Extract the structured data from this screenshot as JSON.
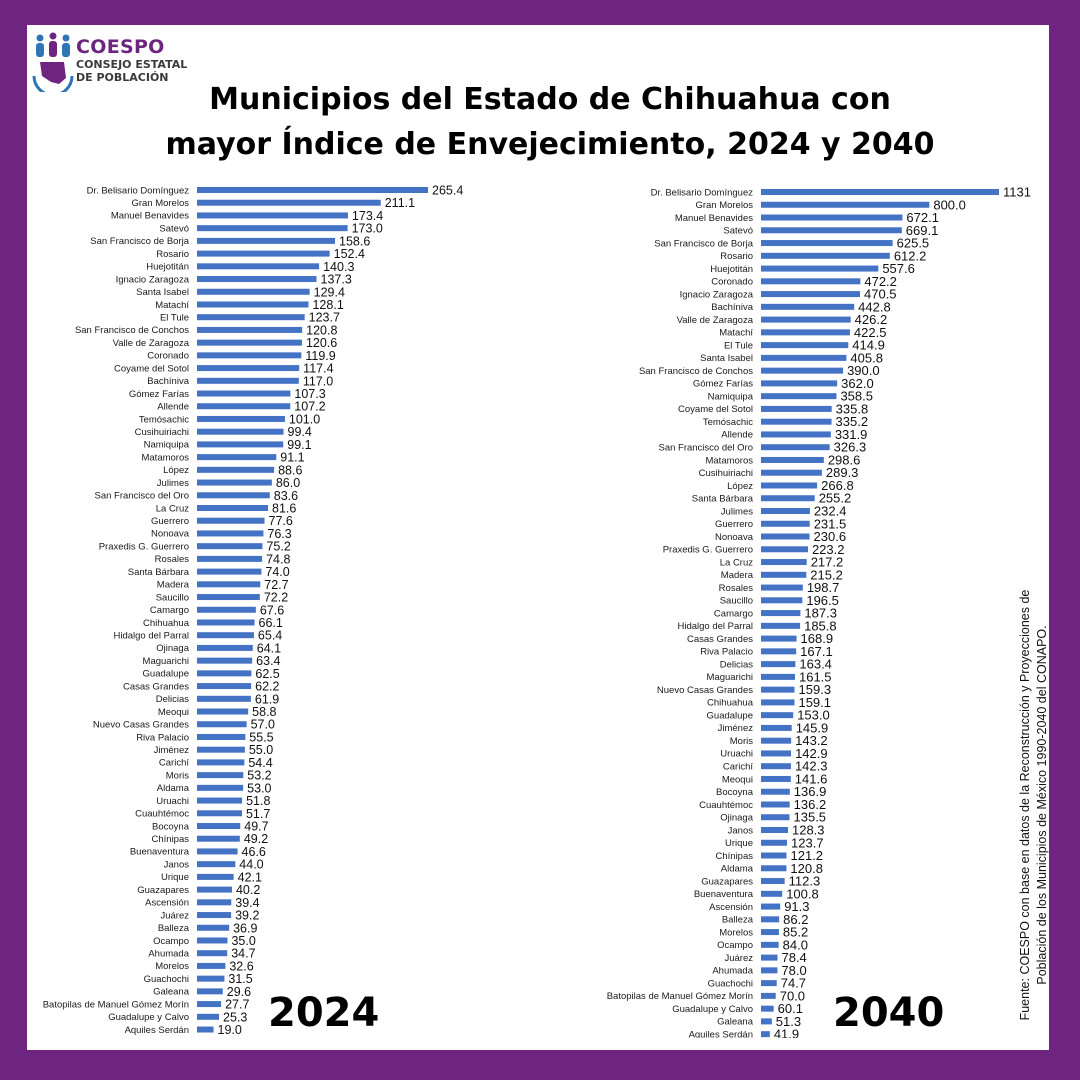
{
  "header": {
    "logo_name": "COESPO",
    "logo_sub_1": "CONSEJO ESTATAL",
    "logo_sub_2": "DE POBLACIÓN",
    "title_line_1": "Municipios del Estado de Chihuahua con",
    "title_line_2": "mayor Índice de Envejecimiento, 2024 y 2040"
  },
  "source_line_1": "Fuente: COESPO con base en datos de la Reconstrucción y Proyecciones de",
  "source_line_2": "Población de los Municipios de México 1990-2040 del CONAPO.",
  "colors": {
    "background": "#6E2580",
    "bar": "#4472C4",
    "logo_blue": "#2E75B6",
    "logo_purple": "#6E2580"
  },
  "chart_data": [
    {
      "type": "bar",
      "orientation": "horizontal",
      "year_label": "2024",
      "title": "",
      "xlabel": "",
      "ylabel": "",
      "xlim": [
        0,
        265.4
      ],
      "grid": false,
      "categories": [
        "Dr. Belisario Domínguez",
        "Gran Morelos",
        "Manuel Benavides",
        "Satevó",
        "San Francisco de Borja",
        "Rosario",
        "Huejotitán",
        "Ignacio Zaragoza",
        "Santa Isabel",
        "Matachí",
        "El Tule",
        "San Francisco de Conchos",
        "Valle de Zaragoza",
        "Coronado",
        "Coyame del Sotol",
        "Bachíniva",
        "Gómez Farías",
        "Allende",
        "Temósachic",
        "Cusihuiriachi",
        "Namiquipa",
        "Matamoros",
        "López",
        "Julimes",
        "San Francisco del Oro",
        "La Cruz",
        "Guerrero",
        "Nonoava",
        "Praxedis G. Guerrero",
        "Rosales",
        "Santa Bárbara",
        "Madera",
        "Saucillo",
        "Camargo",
        "Chihuahua",
        "Hidalgo del Parral",
        "Ojinaga",
        "Maguarichi",
        "Guadalupe",
        "Casas Grandes",
        "Delicias",
        "Meoqui",
        "Nuevo Casas Grandes",
        "Riva Palacio",
        "Jiménez",
        "Carichí",
        "Moris",
        "Aldama",
        "Uruachi",
        "Cuauhtémoc",
        "Bocoyna",
        "Chínipas",
        "Buenaventura",
        "Janos",
        "Urique",
        "Guazapares",
        "Ascensión",
        "Juárez",
        "Balleza",
        "Ocampo",
        "Ahumada",
        "Morelos",
        "Guachochi",
        "Galeana",
        "Batopilas de Manuel Gómez Morín",
        "Guadalupe y Calvo",
        "Aquiles Serdán"
      ],
      "values": [
        265.4,
        211.1,
        173.4,
        173.0,
        158.6,
        152.4,
        140.3,
        137.3,
        129.4,
        128.1,
        123.7,
        120.8,
        120.6,
        119.9,
        117.4,
        117.0,
        107.3,
        107.2,
        101.0,
        99.4,
        99.1,
        91.1,
        88.6,
        86.0,
        83.6,
        81.6,
        77.6,
        76.3,
        75.2,
        74.8,
        74.0,
        72.7,
        72.2,
        67.6,
        66.1,
        65.4,
        64.1,
        63.4,
        62.5,
        62.2,
        61.9,
        58.8,
        57.0,
        55.5,
        55.0,
        54.4,
        53.2,
        53.0,
        51.8,
        51.7,
        49.7,
        49.2,
        46.6,
        44.0,
        42.1,
        40.2,
        39.4,
        39.2,
        36.9,
        35.0,
        34.7,
        32.6,
        31.5,
        29.6,
        27.7,
        25.3,
        19.0
      ],
      "value_labels": [
        "265.4",
        "211.1",
        "173.4",
        "173.0",
        "158.6",
        "152.4",
        "140.3",
        "137.3",
        "129.4",
        "128.1",
        "123.7",
        "120.8",
        "120.6",
        "119.9",
        "117.4",
        "117.0",
        "107.3",
        "107.2",
        "101.0",
        "99.4",
        "99.1",
        "91.1",
        "88.6",
        "86.0",
        "83.6",
        "81.6",
        "77.6",
        "76.3",
        "75.2",
        "74.8",
        "74.0",
        "72.7",
        "72.2",
        "67.6",
        "66.1",
        "65.4",
        "64.1",
        "63.4",
        "62.5",
        "62.2",
        "61.9",
        "58.8",
        "57.0",
        "55.5",
        "55.0",
        "54.4",
        "53.2",
        "53.0",
        "51.8",
        "51.7",
        "49.7",
        "49.2",
        "46.6",
        "44.0",
        "42.1",
        "40.2",
        "39.4",
        "39.2",
        "36.9",
        "35.0",
        "34.7",
        "32.6",
        "31.5",
        "29.6",
        "27.7",
        "25.3",
        "19.0"
      ]
    },
    {
      "type": "bar",
      "orientation": "horizontal",
      "year_label": "2040",
      "title": "",
      "xlabel": "",
      "ylabel": "",
      "xlim": [
        0,
        1131
      ],
      "grid": false,
      "categories": [
        "Dr. Belisario Domínguez",
        "Gran Morelos",
        "Manuel Benavides",
        "Satevó",
        "San Francisco de Borja",
        "Rosario",
        "Huejotitán",
        "Coronado",
        "Ignacio Zaragoza",
        "Bachíniva",
        "Valle de Zaragoza",
        "Matachí",
        "El Tule",
        "Santa Isabel",
        "San Francisco de Conchos",
        "Gómez Farías",
        "Namiquipa",
        "Coyame del Sotol",
        "Temósachic",
        "Allende",
        "San Francisco del Oro",
        "Matamoros",
        "Cusihuiriachi",
        "López",
        "Santa Bárbara",
        "Julimes",
        "Guerrero",
        "Nonoava",
        "Praxedis G. Guerrero",
        "La Cruz",
        "Madera",
        "Rosales",
        "Saucillo",
        "Camargo",
        "Hidalgo del Parral",
        "Casas Grandes",
        "Riva Palacio",
        "Delicias",
        "Maguarichi",
        "Nuevo Casas Grandes",
        "Chihuahua",
        "Guadalupe",
        "Jiménez",
        "Moris",
        "Uruachi",
        "Carichí",
        "Meoqui",
        "Bocoyna",
        "Cuauhtémoc",
        "Ojinaga",
        "Janos",
        "Urique",
        "Chínipas",
        "Aldama",
        "Guazapares",
        "Buenaventura",
        "Ascensión",
        "Balleza",
        "Morelos",
        "Ocampo",
        "Juárez",
        "Ahumada",
        "Guachochi",
        "Batopilas de Manuel Gómez Morín",
        "Guadalupe y Calvo",
        "Galeana",
        "Aquiles Serdán"
      ],
      "values": [
        1131,
        800.0,
        672.1,
        669.1,
        625.5,
        612.2,
        557.6,
        472.2,
        470.5,
        442.8,
        426.2,
        422.5,
        414.9,
        405.8,
        390.0,
        362.0,
        358.5,
        335.8,
        335.2,
        331.9,
        326.3,
        298.6,
        289.3,
        266.8,
        255.2,
        232.4,
        231.5,
        230.6,
        223.2,
        217.2,
        215.2,
        198.7,
        196.5,
        187.3,
        185.8,
        168.9,
        167.1,
        163.4,
        161.5,
        159.3,
        159.1,
        153.0,
        145.9,
        143.2,
        142.9,
        142.3,
        141.6,
        136.9,
        136.2,
        135.5,
        128.3,
        123.7,
        121.2,
        120.8,
        112.3,
        100.8,
        91.3,
        86.2,
        85.2,
        84.0,
        78.4,
        78.0,
        74.7,
        70.0,
        60.1,
        51.3,
        41.9
      ],
      "value_labels": [
        "1131",
        "800.0",
        "672.1",
        "669.1",
        "625.5",
        "612.2",
        "557.6",
        "472.2",
        "470.5",
        "442.8",
        "426.2",
        "422.5",
        "414.9",
        "405.8",
        "390.0",
        "362.0",
        "358.5",
        "335.8",
        "335.2",
        "331.9",
        "326.3",
        "298.6",
        "289.3",
        "266.8",
        "255.2",
        "232.4",
        "231.5",
        "230.6",
        "223.2",
        "217.2",
        "215.2",
        "198.7",
        "196.5",
        "187.3",
        "185.8",
        "168.9",
        "167.1",
        "163.4",
        "161.5",
        "159.3",
        "159.1",
        "153.0",
        "145.9",
        "143.2",
        "142.9",
        "142.3",
        "141.6",
        "136.9",
        "136.2",
        "135.5",
        "128.3",
        "123.7",
        "121.2",
        "120.8",
        "112.3",
        "100.8",
        "91.3",
        "86.2",
        "85.2",
        "84.0",
        "78.4",
        "78.0",
        "74.7",
        "70.0",
        "60.1",
        "51.3",
        "41.9"
      ]
    }
  ]
}
